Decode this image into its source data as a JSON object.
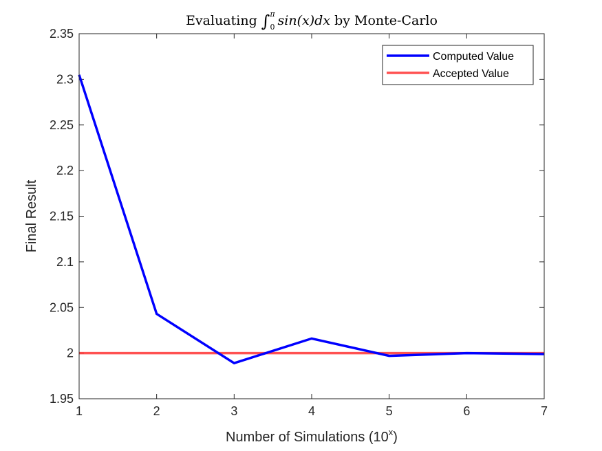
{
  "chart_data": {
    "type": "line",
    "title": {
      "prefix": "Evaluating",
      "integral_sign": "∫",
      "upper_limit": "π",
      "lower_limit": "0",
      "integrand": "sin(x)dx",
      "suffix": "by Monte-Carlo"
    },
    "xlabel": "Number of Simulations (10",
    "xlabel_superscript": "x",
    "xlabel_close": ")",
    "ylabel": "Final Result",
    "xlim": [
      1,
      7
    ],
    "ylim": [
      1.95,
      2.35
    ],
    "xticks": [
      1,
      2,
      3,
      4,
      5,
      6,
      7
    ],
    "xtick_labels": [
      "1",
      "2",
      "3",
      "4",
      "5",
      "6",
      "7"
    ],
    "yticks": [
      1.95,
      2.0,
      2.05,
      2.1,
      2.15,
      2.2,
      2.25,
      2.3,
      2.35
    ],
    "ytick_labels": [
      "1.95",
      "2",
      "2.05",
      "2.1",
      "2.15",
      "2.2",
      "2.25",
      "2.3",
      "2.35"
    ],
    "grid": false,
    "legend_position": "top-right",
    "series": [
      {
        "name": "Computed Value",
        "color": "#0000ff",
        "x": [
          1,
          2,
          3,
          4,
          5,
          6,
          7
        ],
        "values": [
          2.305,
          2.043,
          1.989,
          2.016,
          1.997,
          2.0,
          1.999
        ]
      },
      {
        "name": "Accepted Value",
        "color": "#ff3333",
        "opacity": 0.85,
        "x": [
          1,
          7
        ],
        "values": [
          2.0,
          2.0
        ]
      }
    ]
  }
}
